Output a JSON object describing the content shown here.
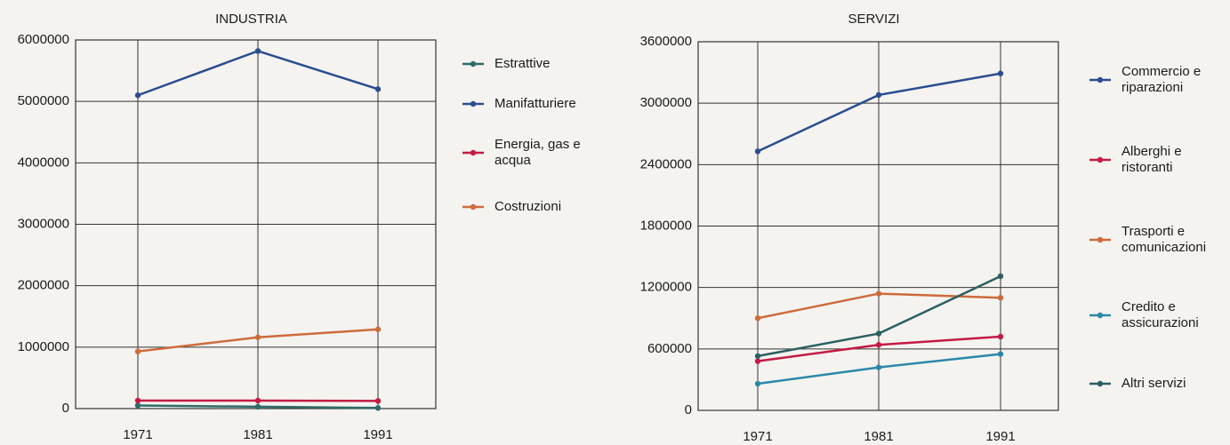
{
  "chart_data": [
    {
      "type": "line",
      "title": "INDUSTRIA",
      "categories": [
        "1971",
        "1981",
        "1991"
      ],
      "ylim": [
        0,
        6000000
      ],
      "yticks": [
        0,
        1000000,
        2000000,
        3000000,
        4000000,
        5000000,
        6000000
      ],
      "grid": true,
      "series": [
        {
          "name": "Estrattive",
          "color": "#2f6b68",
          "values": [
            50000,
            30000,
            10000
          ]
        },
        {
          "name": "Manifatturiere",
          "color": "#2a4d8f",
          "values": [
            5100000,
            5820000,
            5200000
          ]
        },
        {
          "name": "Energia, gas e acqua",
          "color": "#c41a43",
          "values": [
            130000,
            130000,
            125000
          ]
        },
        {
          "name": "Costruzioni",
          "color": "#cd6b3a",
          "values": [
            930000,
            1160000,
            1290000
          ]
        }
      ]
    },
    {
      "type": "line",
      "title": "SERVIZI",
      "categories": [
        "1971",
        "1981",
        "1991"
      ],
      "ylim": [
        0,
        3600000
      ],
      "yticks": [
        0,
        600000,
        1200000,
        1800000,
        2400000,
        3000000,
        3600000
      ],
      "grid": true,
      "series": [
        {
          "name": "Commercio e riparazioni",
          "color": "#2a4d8f",
          "values": [
            2530000,
            3080000,
            3290000
          ]
        },
        {
          "name": "Alberghi e ristoranti",
          "color": "#c41a43",
          "values": [
            480000,
            640000,
            720000
          ]
        },
        {
          "name": "Trasporti e comunicazioni",
          "color": "#cd6b3a",
          "values": [
            900000,
            1140000,
            1100000
          ]
        },
        {
          "name": "Credito e assicurazioni",
          "color": "#2b88a8",
          "values": [
            260000,
            420000,
            550000
          ]
        },
        {
          "name": "Altri servizi",
          "color": "#2c5f63",
          "values": [
            530000,
            750000,
            1310000
          ]
        }
      ]
    }
  ]
}
